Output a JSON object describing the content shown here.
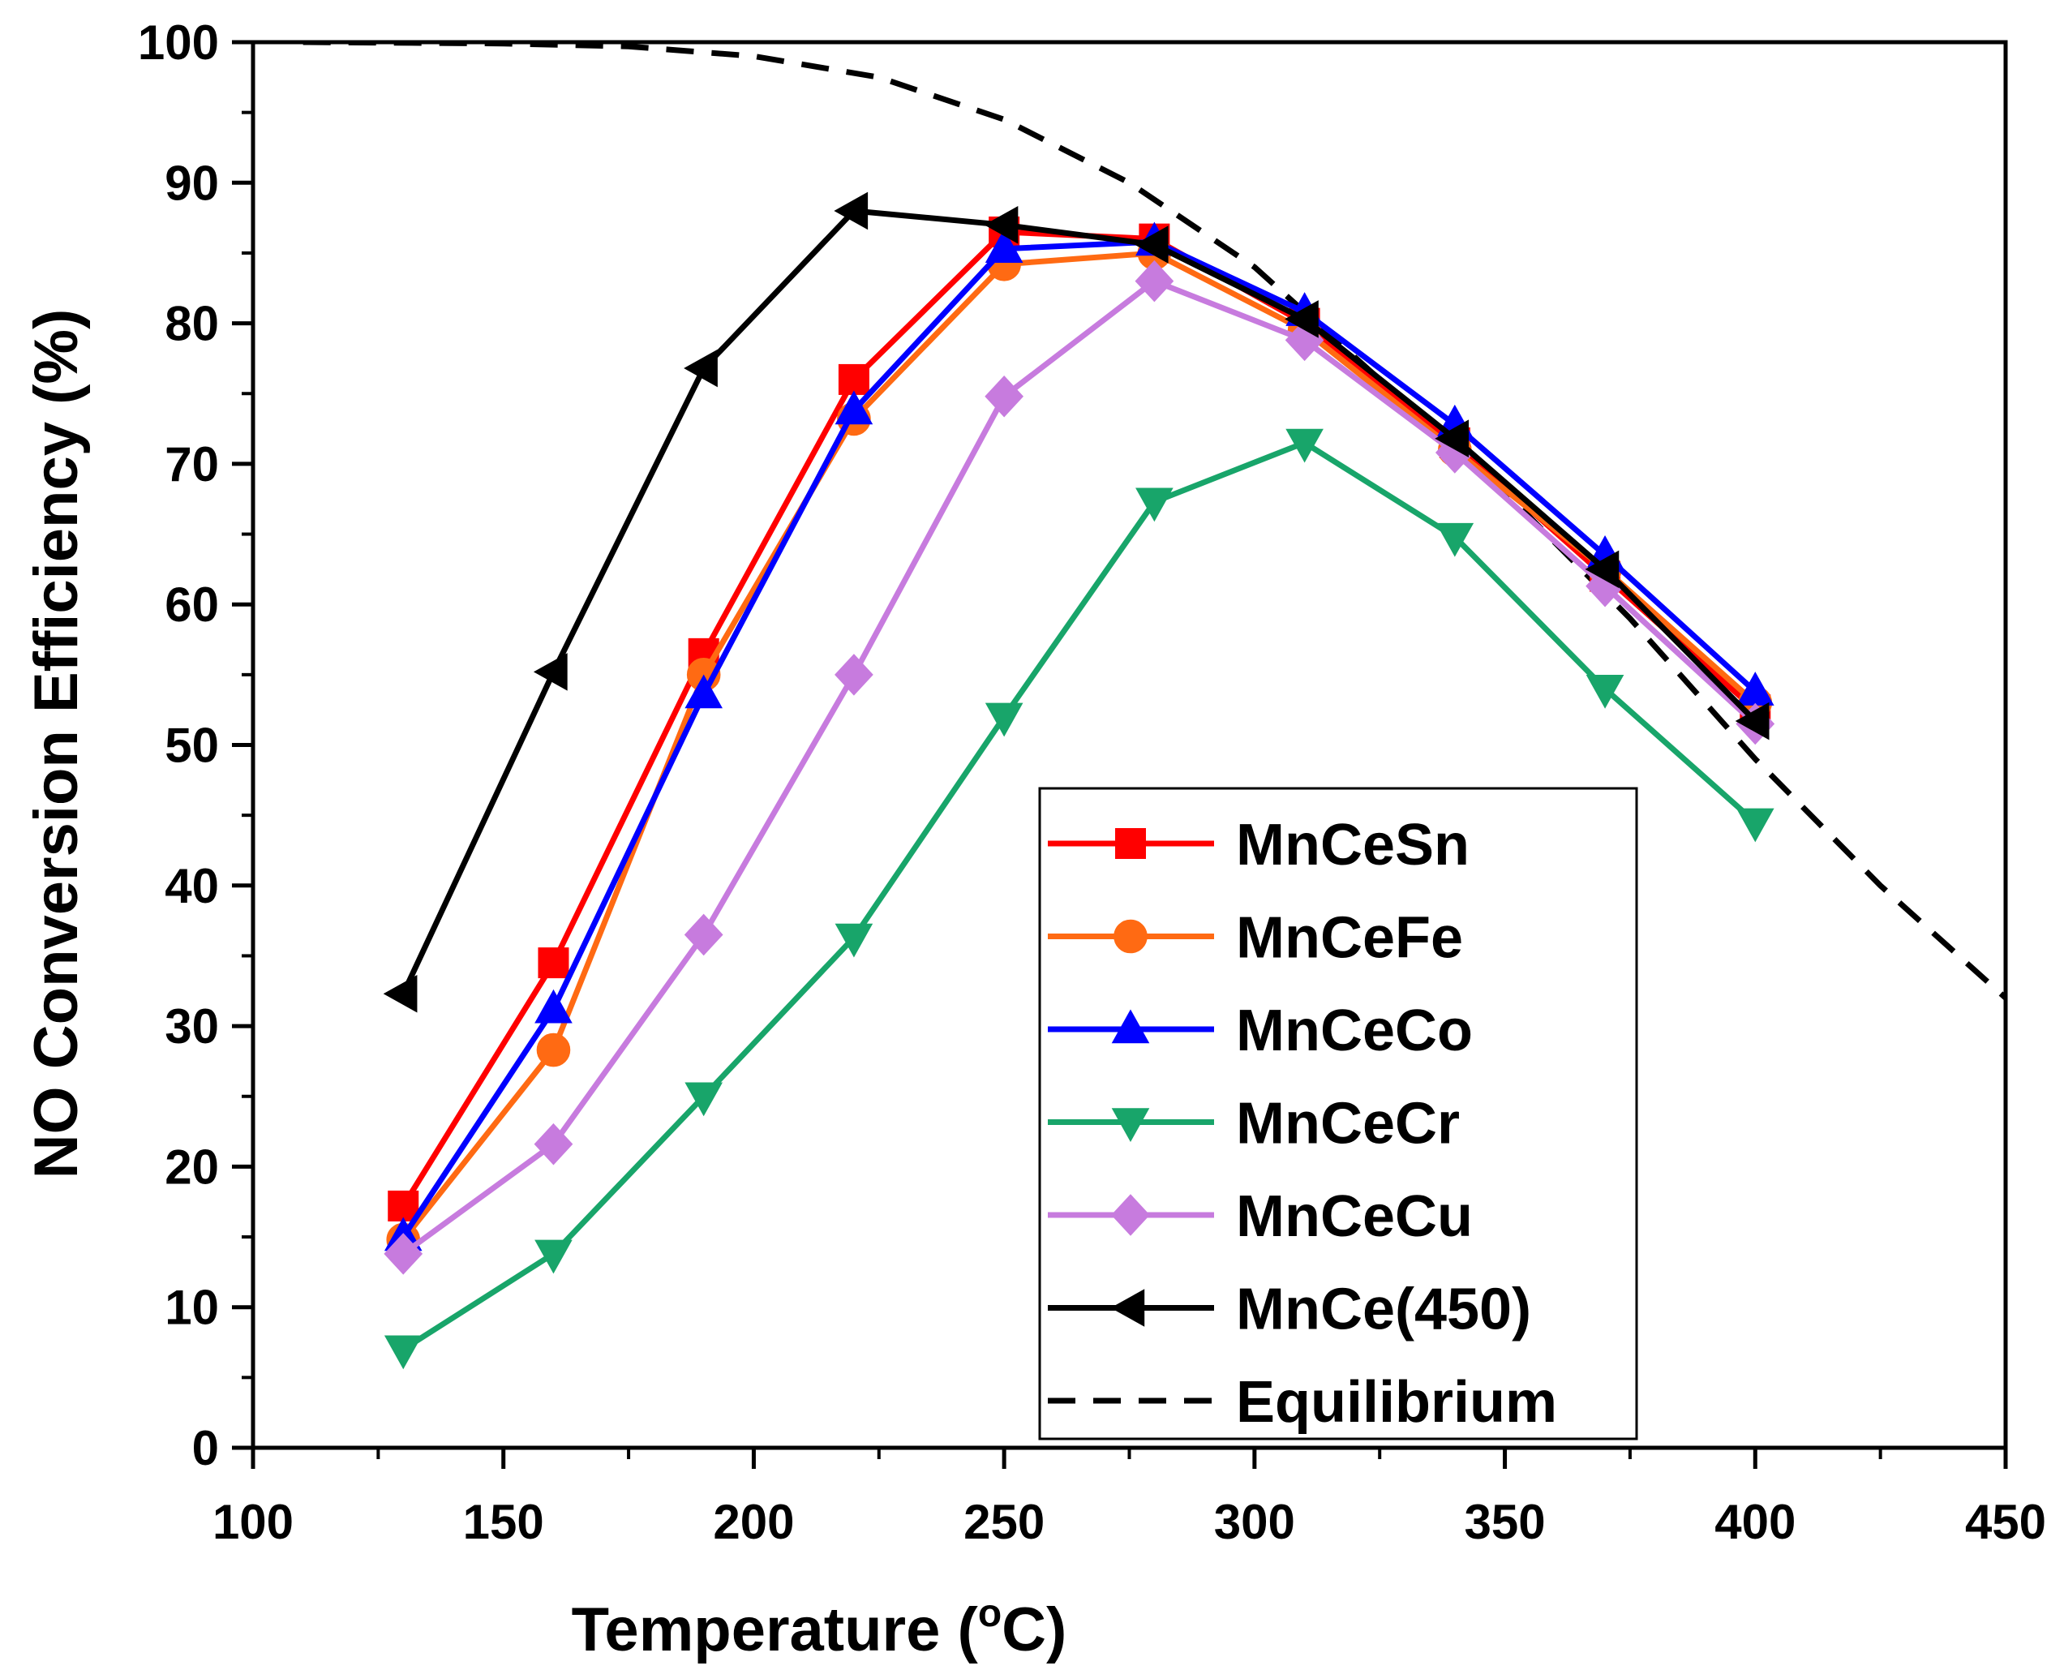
{
  "chart_data": {
    "type": "line",
    "title": "",
    "xlabel": "Temperature (",
    "xlabel_unit": "C)",
    "xlabel_superscript": "o",
    "ylabel": "NO Conversion Efficiency (%)",
    "xlim": [
      100,
      450
    ],
    "ylim": [
      0,
      100
    ],
    "xticks": [
      100,
      150,
      200,
      250,
      300,
      350,
      400,
      450
    ],
    "yticks": [
      0,
      10,
      20,
      30,
      40,
      50,
      60,
      70,
      80,
      90,
      100
    ],
    "grid": false,
    "legend_position": "lower-right",
    "x": [
      130,
      160,
      190,
      220,
      250,
      280,
      310,
      340,
      370,
      400
    ],
    "series": [
      {
        "name": "MnCeSn",
        "color": "#ff0000",
        "marker": "square",
        "values": [
          17.2,
          34.5,
          56.5,
          76.0,
          86.5,
          86.0,
          80.0,
          71.5,
          62.0,
          52.5
        ]
      },
      {
        "name": "MnCeFe",
        "color": "#ff6a13",
        "marker": "circle",
        "values": [
          14.8,
          28.3,
          55.0,
          73.2,
          84.2,
          85.0,
          79.5,
          71.0,
          62.5,
          53.0
        ]
      },
      {
        "name": "MnCeCo",
        "color": "#0000ff",
        "marker": "triangle-up",
        "values": [
          15.0,
          31.2,
          53.6,
          73.8,
          85.3,
          85.8,
          80.8,
          72.8,
          63.5,
          53.8
        ]
      },
      {
        "name": "MnCeCr",
        "color": "#18a56a",
        "marker": "triangle-down",
        "values": [
          7.0,
          13.8,
          25.0,
          36.3,
          52.0,
          67.3,
          71.5,
          64.8,
          54.0,
          44.5
        ]
      },
      {
        "name": "MnCeCu",
        "color": "#c77bde",
        "marker": "diamond",
        "values": [
          13.8,
          21.6,
          36.5,
          55.0,
          74.8,
          83.0,
          78.8,
          70.8,
          61.3,
          51.5
        ]
      },
      {
        "name": "MnCe(450)",
        "color": "#000000",
        "marker": "triangle-left",
        "values": [
          32.3,
          55.2,
          76.8,
          88.0,
          87.0,
          85.6,
          80.3,
          71.8,
          62.5,
          51.7
        ]
      }
    ],
    "equilibrium": {
      "name": "Equilibrium",
      "color": "#000000",
      "style": "dashed",
      "x": [
        110,
        150,
        175,
        200,
        225,
        250,
        275,
        300,
        325,
        350,
        375,
        400,
        425,
        450
      ],
      "values": [
        100,
        99.9,
        99.7,
        99.0,
        97.5,
        94.5,
        90.0,
        84.0,
        76.0,
        68.0,
        59.0,
        49.0,
        40.0,
        32.0
      ]
    }
  }
}
